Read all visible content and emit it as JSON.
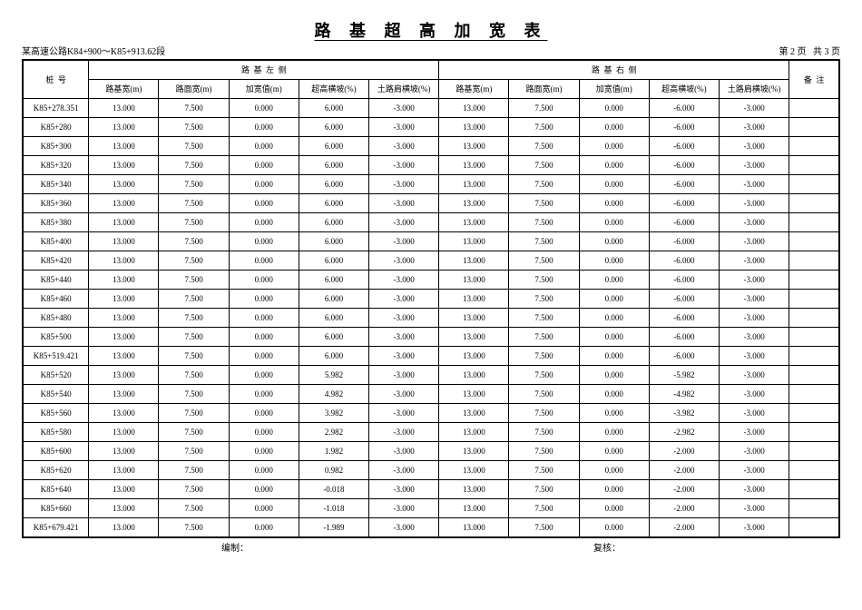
{
  "title": "路 基 超 高 加 宽 表",
  "road_section": "某高速公路K84+900～K85+913.62段",
  "page_info": "第 2 页   共 3 页",
  "header": {
    "station": "桩  号",
    "left_group": "路  基  左  侧",
    "right_group": "路  基  右  侧",
    "remark": "备  注",
    "cols_left": [
      "路基宽(m)",
      "路面宽(m)",
      "加宽值(m)",
      "超高横坡(%)",
      "土路肩横坡(%)"
    ],
    "cols_right": [
      "路基宽(m)",
      "路面宽(m)",
      "加宽值(m)",
      "超高横坡(%)",
      "土路肩横坡(%)"
    ]
  },
  "rows": [
    {
      "s": "K85+278.351",
      "l": [
        "13.000",
        "7.500",
        "0.000",
        "6.000",
        "-3.000"
      ],
      "r": [
        "13.000",
        "7.500",
        "0.000",
        "-6.000",
        "-3.000"
      ],
      "rm": ""
    },
    {
      "s": "K85+280",
      "l": [
        "13.000",
        "7.500",
        "0.000",
        "6.000",
        "-3.000"
      ],
      "r": [
        "13.000",
        "7.500",
        "0.000",
        "-6.000",
        "-3.000"
      ],
      "rm": ""
    },
    {
      "s": "K85+300",
      "l": [
        "13.000",
        "7.500",
        "0.000",
        "6.000",
        "-3.000"
      ],
      "r": [
        "13.000",
        "7.500",
        "0.000",
        "-6.000",
        "-3.000"
      ],
      "rm": ""
    },
    {
      "s": "K85+320",
      "l": [
        "13.000",
        "7.500",
        "0.000",
        "6.000",
        "-3.000"
      ],
      "r": [
        "13.000",
        "7.500",
        "0.000",
        "-6.000",
        "-3.000"
      ],
      "rm": ""
    },
    {
      "s": "K85+340",
      "l": [
        "13.000",
        "7.500",
        "0.000",
        "6.000",
        "-3.000"
      ],
      "r": [
        "13.000",
        "7.500",
        "0.000",
        "-6.000",
        "-3.000"
      ],
      "rm": ""
    },
    {
      "s": "K85+360",
      "l": [
        "13.000",
        "7.500",
        "0.000",
        "6.000",
        "-3.000"
      ],
      "r": [
        "13.000",
        "7.500",
        "0.000",
        "-6.000",
        "-3.000"
      ],
      "rm": ""
    },
    {
      "s": "K85+380",
      "l": [
        "13.000",
        "7.500",
        "0.000",
        "6.000",
        "-3.000"
      ],
      "r": [
        "13.000",
        "7.500",
        "0.000",
        "-6.000",
        "-3.000"
      ],
      "rm": ""
    },
    {
      "s": "K85+400",
      "l": [
        "13.000",
        "7.500",
        "0.000",
        "6.000",
        "-3.000"
      ],
      "r": [
        "13.000",
        "7.500",
        "0.000",
        "-6.000",
        "-3.000"
      ],
      "rm": ""
    },
    {
      "s": "K85+420",
      "l": [
        "13.000",
        "7.500",
        "0.000",
        "6.000",
        "-3.000"
      ],
      "r": [
        "13.000",
        "7.500",
        "0.000",
        "-6.000",
        "-3.000"
      ],
      "rm": ""
    },
    {
      "s": "K85+440",
      "l": [
        "13.000",
        "7.500",
        "0.000",
        "6.000",
        "-3.000"
      ],
      "r": [
        "13.000",
        "7.500",
        "0.000",
        "-6.000",
        "-3.000"
      ],
      "rm": ""
    },
    {
      "s": "K85+460",
      "l": [
        "13.000",
        "7.500",
        "0.000",
        "6.000",
        "-3.000"
      ],
      "r": [
        "13.000",
        "7.500",
        "0.000",
        "-6.000",
        "-3.000"
      ],
      "rm": ""
    },
    {
      "s": "K85+480",
      "l": [
        "13.000",
        "7.500",
        "0.000",
        "6.000",
        "-3.000"
      ],
      "r": [
        "13.000",
        "7.500",
        "0.000",
        "-6.000",
        "-3.000"
      ],
      "rm": ""
    },
    {
      "s": "K85+500",
      "l": [
        "13.000",
        "7.500",
        "0.000",
        "6.000",
        "-3.000"
      ],
      "r": [
        "13.000",
        "7.500",
        "0.000",
        "-6.000",
        "-3.000"
      ],
      "rm": ""
    },
    {
      "s": "K85+519.421",
      "l": [
        "13.000",
        "7.500",
        "0.000",
        "6.000",
        "-3.000"
      ],
      "r": [
        "13.000",
        "7.500",
        "0.000",
        "-6.000",
        "-3.000"
      ],
      "rm": ""
    },
    {
      "s": "K85+520",
      "l": [
        "13.000",
        "7.500",
        "0.000",
        "5.982",
        "-3.000"
      ],
      "r": [
        "13.000",
        "7.500",
        "0.000",
        "-5.982",
        "-3.000"
      ],
      "rm": ""
    },
    {
      "s": "K85+540",
      "l": [
        "13.000",
        "7.500",
        "0.000",
        "4.982",
        "-3.000"
      ],
      "r": [
        "13.000",
        "7.500",
        "0.000",
        "-4.982",
        "-3.000"
      ],
      "rm": ""
    },
    {
      "s": "K85+560",
      "l": [
        "13.000",
        "7.500",
        "0.000",
        "3.982",
        "-3.000"
      ],
      "r": [
        "13.000",
        "7.500",
        "0.000",
        "-3.982",
        "-3.000"
      ],
      "rm": ""
    },
    {
      "s": "K85+580",
      "l": [
        "13.000",
        "7.500",
        "0.000",
        "2.982",
        "-3.000"
      ],
      "r": [
        "13.000",
        "7.500",
        "0.000",
        "-2.982",
        "-3.000"
      ],
      "rm": ""
    },
    {
      "s": "K85+600",
      "l": [
        "13.000",
        "7.500",
        "0.000",
        "1.982",
        "-3.000"
      ],
      "r": [
        "13.000",
        "7.500",
        "0.000",
        "-2.000",
        "-3.000"
      ],
      "rm": ""
    },
    {
      "s": "K85+620",
      "l": [
        "13.000",
        "7.500",
        "0.000",
        "0.982",
        "-3.000"
      ],
      "r": [
        "13.000",
        "7.500",
        "0.000",
        "-2.000",
        "-3.000"
      ],
      "rm": ""
    },
    {
      "s": "K85+640",
      "l": [
        "13.000",
        "7.500",
        "0.000",
        "-0.018",
        "-3.000"
      ],
      "r": [
        "13.000",
        "7.500",
        "0.000",
        "-2.000",
        "-3.000"
      ],
      "rm": ""
    },
    {
      "s": "K85+660",
      "l": [
        "13.000",
        "7.500",
        "0.000",
        "-1.018",
        "-3.000"
      ],
      "r": [
        "13.000",
        "7.500",
        "0.000",
        "-2.000",
        "-3.000"
      ],
      "rm": ""
    },
    {
      "s": "K85+679.421",
      "l": [
        "13.000",
        "7.500",
        "0.000",
        "-1.989",
        "-3.000"
      ],
      "r": [
        "13.000",
        "7.500",
        "0.000",
        "-2.000",
        "-3.000"
      ],
      "rm": ""
    }
  ],
  "footer": {
    "compile": "编制：",
    "review": "复核："
  }
}
